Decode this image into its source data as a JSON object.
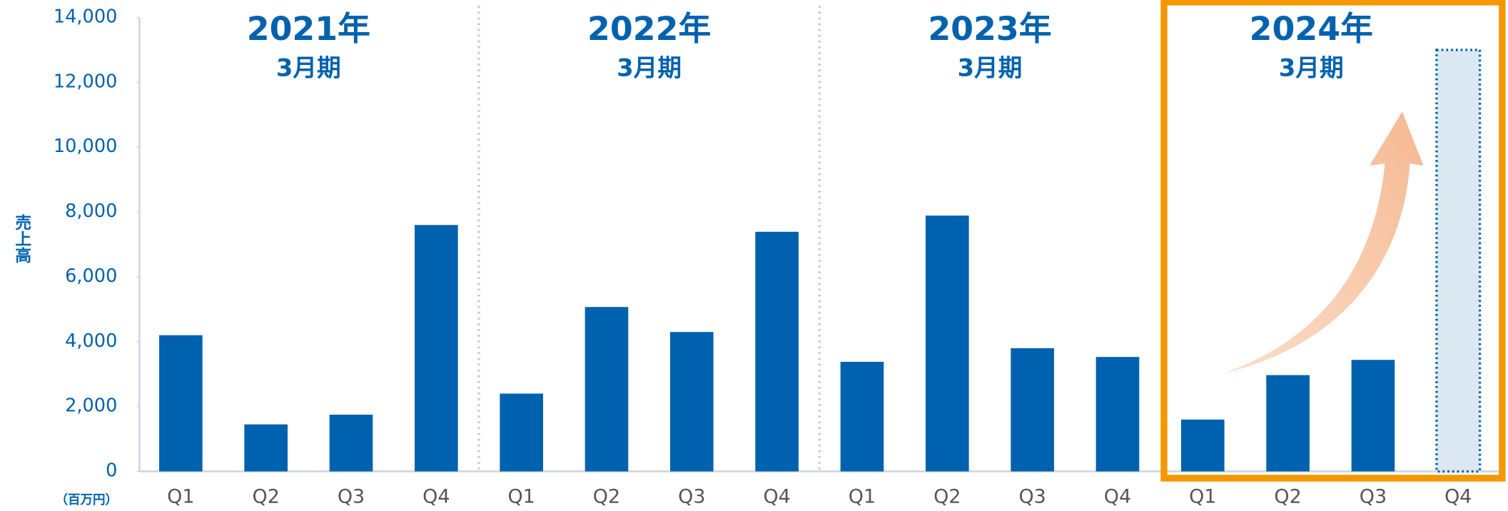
{
  "chart_data": {
    "type": "bar",
    "y_label": "売上高",
    "unit": "（百万円）",
    "ylim": [
      0,
      14000
    ],
    "yticks": [
      0,
      {
        "value": 2000,
        "label": "2,000"
      },
      {
        "value": 4000,
        "label": "4,000"
      },
      {
        "value": 6000,
        "label": "6,000"
      },
      {
        "value": 8000,
        "label": "8,000"
      },
      {
        "value": 10000,
        "label": "10,000"
      },
      {
        "value": 12000,
        "label": "12,000"
      },
      {
        "value": 14000,
        "label": "14,000"
      }
    ],
    "color": "#0062ae",
    "estimate_color": "#dbe8f1",
    "highlight_color": "#f39800",
    "highlight_group": 3,
    "groups": [
      {
        "title": "2021年",
        "subtitle": "3月期",
        "categories": [
          "Q1",
          "Q2",
          "Q3",
          "Q4"
        ],
        "values": [
          4200,
          1450,
          1750,
          7600
        ],
        "estimated": [
          false,
          false,
          false,
          false
        ]
      },
      {
        "title": "2022年",
        "subtitle": "3月期",
        "categories": [
          "Q1",
          "Q2",
          "Q3",
          "Q4"
        ],
        "values": [
          2400,
          5070,
          4300,
          7390
        ],
        "estimated": [
          false,
          false,
          false,
          false
        ]
      },
      {
        "title": "2023年",
        "subtitle": "3月期",
        "categories": [
          "Q1",
          "Q2",
          "Q3",
          "Q4"
        ],
        "values": [
          3380,
          7890,
          3800,
          3530
        ],
        "estimated": [
          false,
          false,
          false,
          false
        ]
      },
      {
        "title": "2024年",
        "subtitle": "3月期",
        "categories": [
          "Q1",
          "Q2",
          "Q3",
          "Q4"
        ],
        "values": [
          1600,
          2970,
          3440,
          13000
        ],
        "estimated": [
          false,
          false,
          false,
          true
        ]
      }
    ]
  }
}
